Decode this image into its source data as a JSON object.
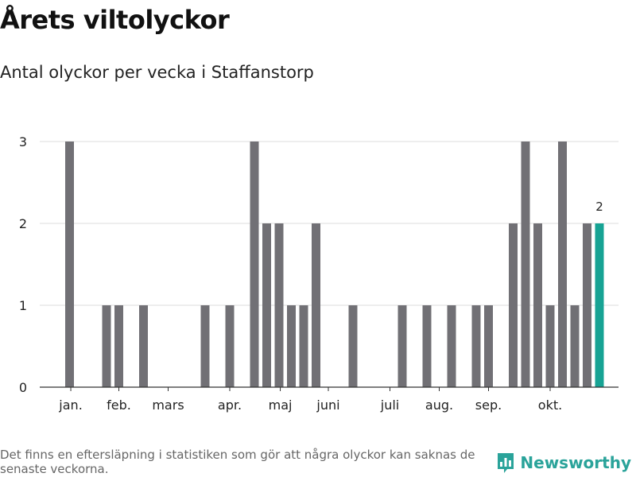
{
  "title": "Årets viltolyckor",
  "subtitle": "Antal olyckor per vecka i Staffanstorp",
  "footnote": "Det finns en eftersläpning i statistiken som gör att några olyckor kan saknas de senaste veckorna.",
  "brand": "Newsworthy",
  "colors": {
    "bar": "#717075",
    "highlight": "#17a394",
    "grid": "#dddddd",
    "axis": "#333333",
    "brand": "#2aa39a"
  },
  "chart_data": {
    "type": "bar",
    "xlabel": "",
    "ylabel": "",
    "ylim": [
      0,
      3
    ],
    "yticks": [
      0,
      1,
      2,
      3
    ],
    "grid": true,
    "weeks": [
      1,
      2,
      3,
      4,
      5,
      6,
      7,
      8,
      9,
      10,
      11,
      12,
      13,
      14,
      15,
      16,
      17,
      18,
      19,
      20,
      21,
      22,
      23,
      24,
      25,
      26,
      27,
      28,
      29,
      30,
      31,
      32,
      33,
      34,
      35,
      36,
      37,
      38,
      39,
      40,
      41,
      42,
      43
    ],
    "values": [
      3,
      0,
      0,
      1,
      1,
      0,
      1,
      0,
      0,
      0,
      0,
      1,
      0,
      1,
      0,
      3,
      2,
      2,
      1,
      1,
      2,
      0,
      0,
      1,
      0,
      0,
      0,
      1,
      0,
      1,
      0,
      1,
      0,
      1,
      1,
      0,
      2,
      3,
      2,
      1,
      3,
      1,
      2
    ],
    "current": {
      "week": 44,
      "value": 2,
      "label": "2"
    },
    "month_labels": [
      {
        "label": "jan.",
        "week": 1.1
      },
      {
        "label": "feb.",
        "week": 5.0
      },
      {
        "label": "mars",
        "week": 9.0
      },
      {
        "label": "apr.",
        "week": 14.0
      },
      {
        "label": "maj",
        "week": 18.1
      },
      {
        "label": "juni",
        "week": 22.0
      },
      {
        "label": "juli",
        "week": 27.0
      },
      {
        "label": "aug.",
        "week": 31.0
      },
      {
        "label": "sep.",
        "week": 35.0
      },
      {
        "label": "okt.",
        "week": 40.0
      }
    ]
  }
}
